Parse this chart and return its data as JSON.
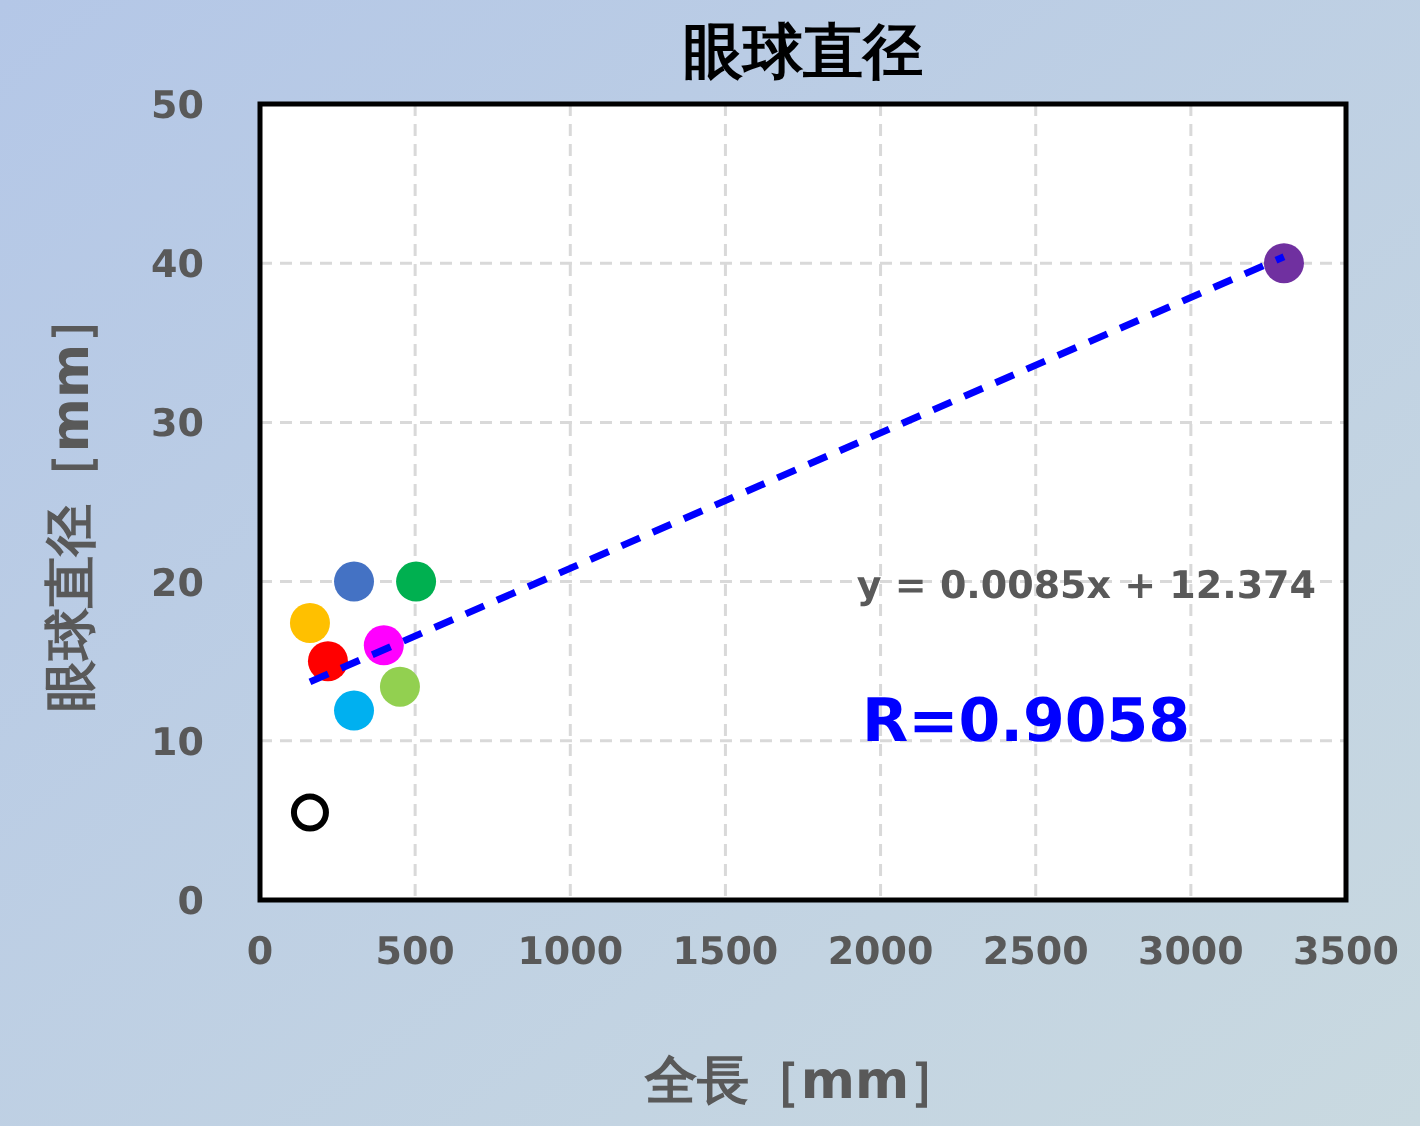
{
  "chart_data": {
    "type": "scatter",
    "title": "眼球直径",
    "xlabel": "全長［mm］",
    "ylabel": "眼球直径［mm］",
    "xlim": [
      0,
      3500
    ],
    "xticks": [
      0,
      500,
      1000,
      1500,
      2000,
      2500,
      3000,
      3500
    ],
    "ylim": [
      0,
      50
    ],
    "yticks": [
      0,
      10,
      20,
      30,
      40,
      50
    ],
    "grid": true,
    "marker": "circle",
    "series": [
      {
        "x": [
          303,
          503,
          161,
          219,
          399,
          451,
          303,
          3300
        ],
        "values": [
          20,
          20,
          17.4,
          15,
          16,
          13.4,
          11.9,
          40
        ],
        "colors": [
          "#4472c4",
          "#00b050",
          "#ffc000",
          "#ff0000",
          "#ff00ff",
          "#92d050",
          "#00b0f0",
          "#7030a0"
        ]
      },
      {
        "x": [
          161
        ],
        "values": [
          5.5
        ],
        "color": "#000000"
      },
      {
        "type": "line",
        "x": [
          161,
          3300
        ],
        "values": [
          13.7,
          40.4
        ],
        "color": "#0000ff",
        "line_style": "dashed",
        "marker": "none"
      }
    ],
    "annotations": [
      "y = 0.0085x + 12.374",
      "R=0.9058"
    ]
  }
}
